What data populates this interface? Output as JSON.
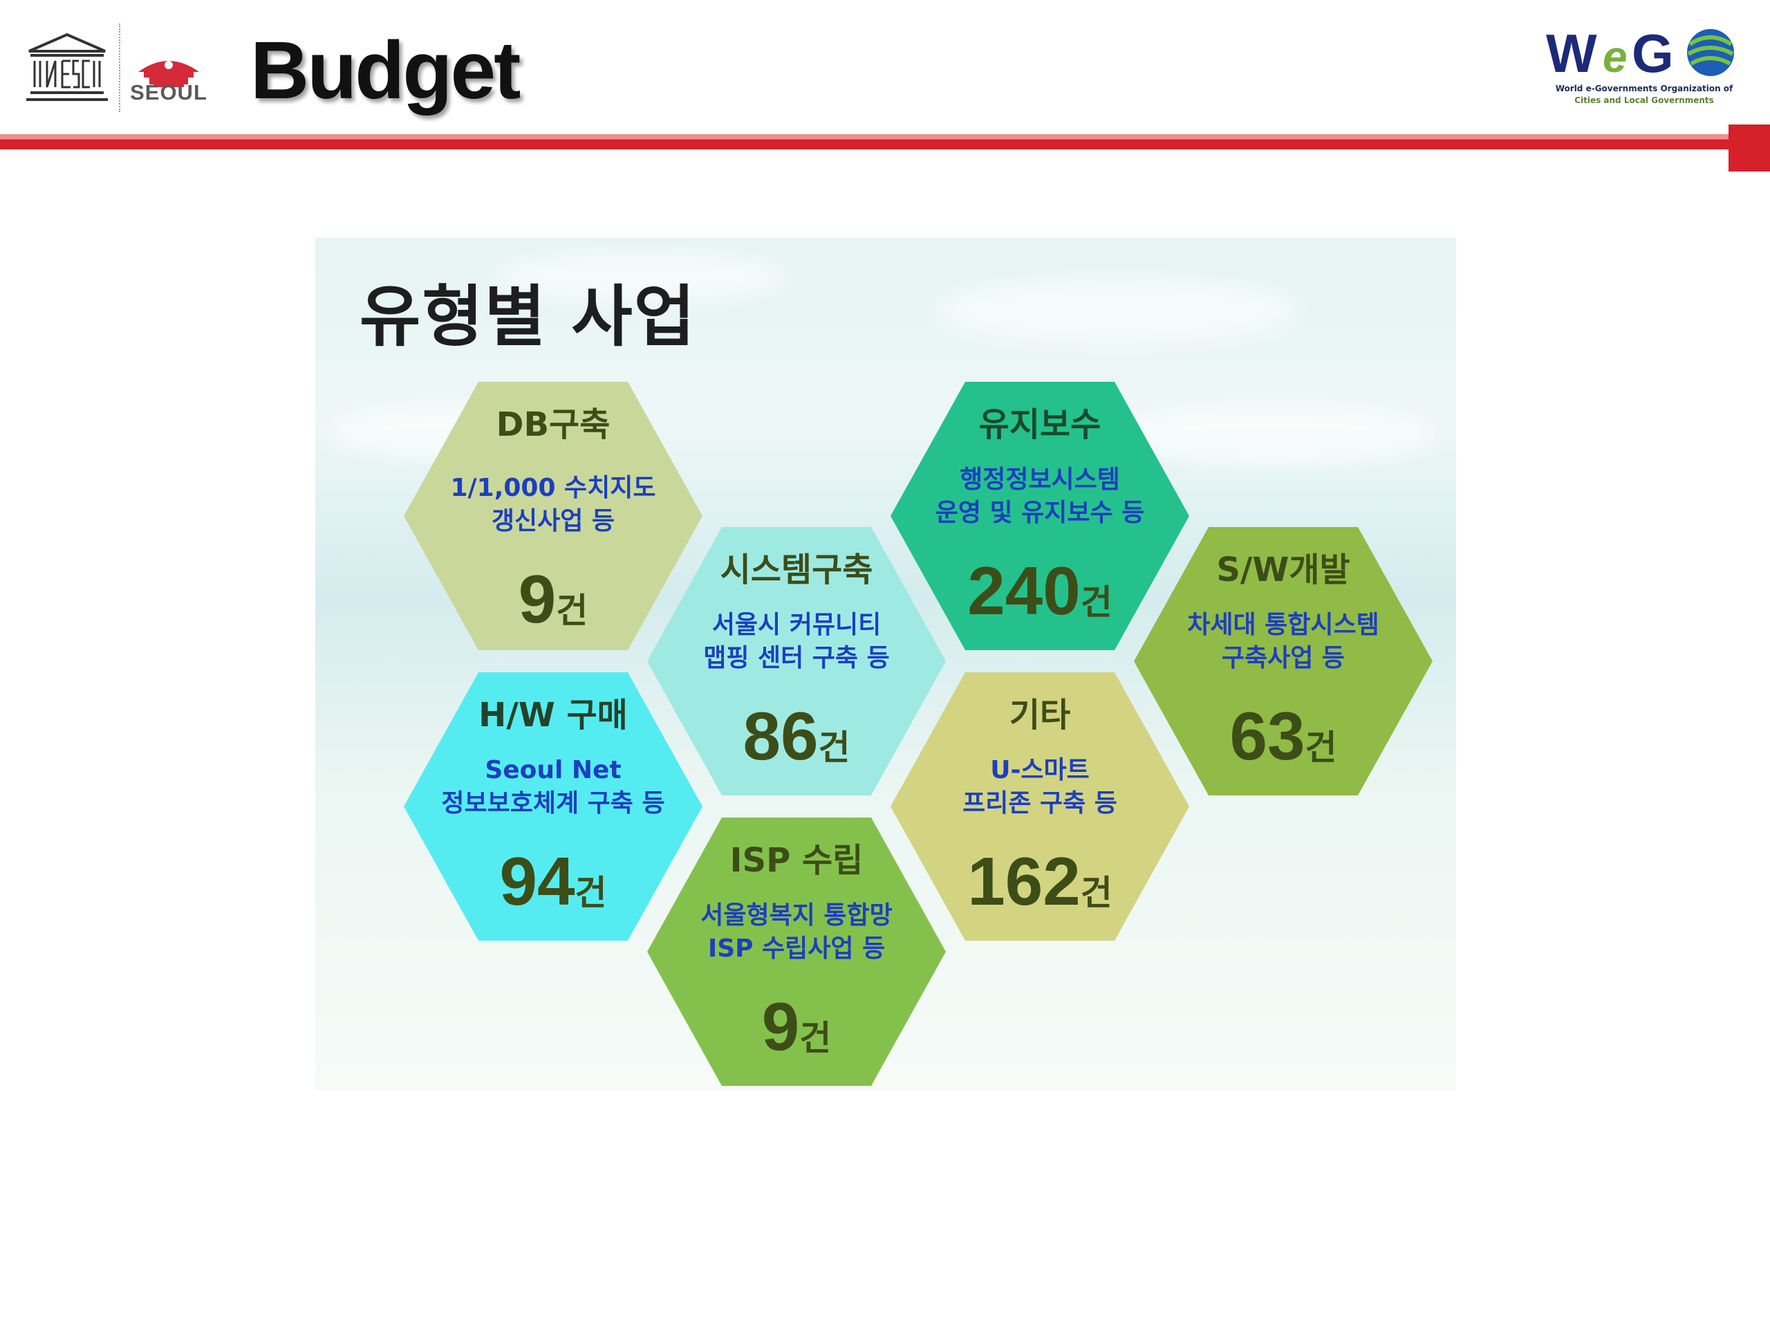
{
  "header": {
    "title": "Budget",
    "seoul_label": "SEOUL",
    "wego_tagline_line1": "World e-Governments Organization of",
    "wego_tagline_line2": "Cities and Local Governments"
  },
  "colors": {
    "accent_red": "#d6202a",
    "hex_db": "#c9d89a",
    "hex_system": "#9eeae3",
    "hex_maintenance": "#24c18d",
    "hex_sw": "#90bb46",
    "hex_hw": "#55ecf1",
    "hex_etc": "#d2d481",
    "hex_isp": "#84c14c"
  },
  "diagram": {
    "title": "유형별 사업",
    "unit": "건",
    "items": [
      {
        "category": "DB구축",
        "desc_line1": "1/1,000 수치지도",
        "desc_line2": "갱신사업 등",
        "count": "9"
      },
      {
        "category": "시스템구축",
        "desc_line1": "서울시 커뮤니티",
        "desc_line2": "맵핑 센터 구축 등",
        "count": "86"
      },
      {
        "category": "유지보수",
        "desc_line1": "행정정보시스템",
        "desc_line2": "운영 및 유지보수 등",
        "count": "240"
      },
      {
        "category": "S/W개발",
        "desc_line1": "차세대 통합시스템",
        "desc_line2": "구축사업 등",
        "count": "63"
      },
      {
        "category": "H/W 구매",
        "desc_line1": "Seoul Net",
        "desc_line2": "정보보호체계 구축 등",
        "count": "94"
      },
      {
        "category": "기타",
        "desc_line1": "U-스마트",
        "desc_line2": "프리존 구축 등",
        "count": "162"
      },
      {
        "category": "ISP 수립",
        "desc_line1": "서울형복지 통합망",
        "desc_line2": "ISP 수립사업 등",
        "count": "9"
      }
    ]
  }
}
